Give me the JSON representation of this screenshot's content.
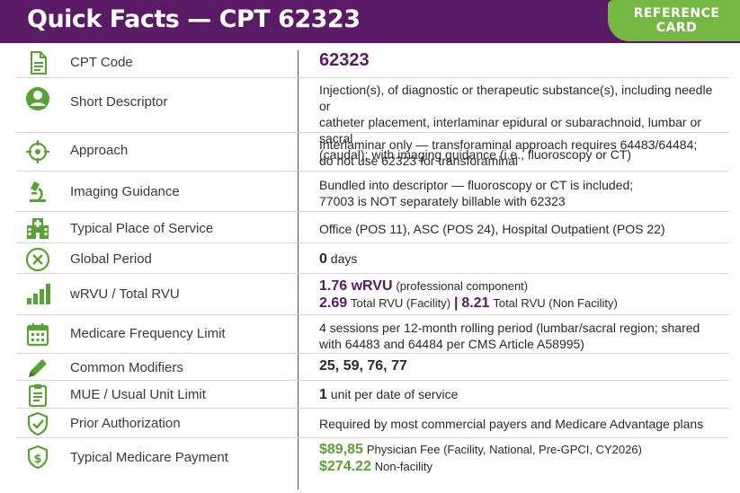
{
  "header": {
    "title": "Quick Facts — CPT 62323",
    "badge_line1": "REFERENCE",
    "badge_line2": "CARD"
  },
  "colors": {
    "header_bg": "#5a1a66",
    "badge_bg": "#74b843",
    "icon_green": "#58a235",
    "accent_purple": "#5a1a66"
  },
  "rows": [
    {
      "icon": "document-icon",
      "label": "CPT Code",
      "value": "62323"
    },
    {
      "icon": "person-icon",
      "label": "Short Descriptor",
      "line1": "Injection(s), of diagnostic or therapeutic substance(s), including needle or",
      "line2": "catheter placement, interlaminar epidural or subarachnoid, lumbar or sacral",
      "line3": "(caudal); with imaging guidance (i.e., fluoroscopy or CT)"
    },
    {
      "icon": "crosshair-icon",
      "label": "Approach",
      "line1": "Interlaminar only — transforaminal approach requires 64483/64484;",
      "line2": "do not use 62323 for transforaminal"
    },
    {
      "icon": "microscope-icon",
      "label": "Imaging Guidance",
      "line1": "Bundled into descriptor — fluoroscopy or CT is included;",
      "line2": "77003 is NOT separately billable with 62323"
    },
    {
      "icon": "hospital-icon",
      "label": "Typical Place of Service",
      "value": "Office (POS 11), ASC (POS 24), Hospital Outpatient (POS 22)"
    },
    {
      "icon": "circle-x-icon",
      "label": "Global Period",
      "value_num": "0",
      "value_unit": "days"
    },
    {
      "icon": "bar-chart-icon",
      "label": "wRVU / Total RVU",
      "wrvu": "1.76 wRVU",
      "wrvu_note": "(professional component)",
      "total_fac": "2.69",
      "total_fac_label": "Total RVU (Facility)",
      "sep": "|",
      "total_nonfac": "8.21",
      "total_nonfac_label": "Total RVU (Non Facility)"
    },
    {
      "icon": "calendar-icon",
      "label": "Medicare Frequency Limit",
      "line1": "4 sessions per 12-month rolling period (lumbar/sacral region; shared",
      "line2": "with 64483 and 64484 per CMS Article A58995)"
    },
    {
      "icon": "pencil-icon",
      "label": "Common Modifiers",
      "value": "25, 59, 76, 77"
    },
    {
      "icon": "clipboard-icon",
      "label": "MUE / Usual Unit Limit",
      "value_num": "1",
      "value_text": "unit per date of service"
    },
    {
      "icon": "shield-check-icon",
      "label": "Prior Authorization",
      "value": "Required by most commercial payers and Medicare Advantage plans"
    },
    {
      "icon": "shield-dollar-icon",
      "label": "Typical Medicare Payment",
      "fee1": "$89,85",
      "fee1_label": "Physician Fee (Facility, National, Pre-GPCI, CY2026)",
      "fee2": "$274.22",
      "fee2_label": "Non-facility"
    }
  ]
}
